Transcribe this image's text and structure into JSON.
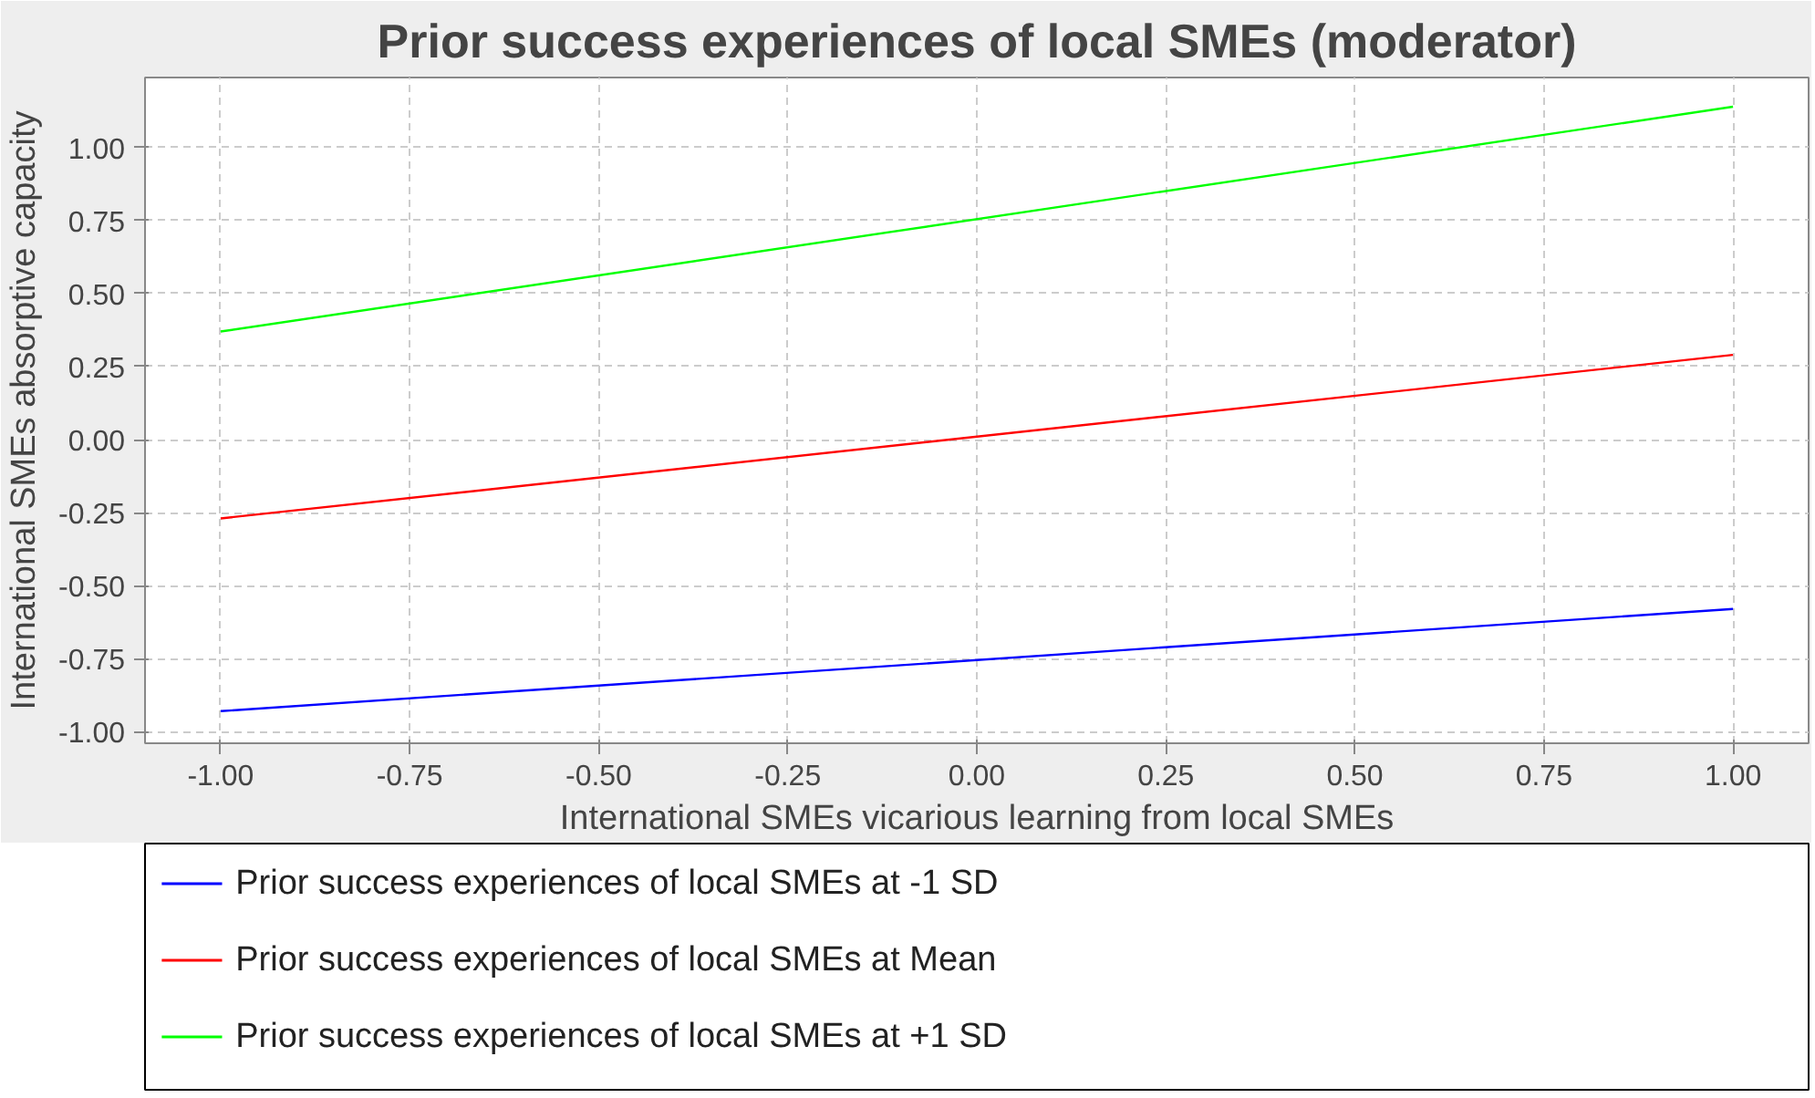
{
  "chart_data": {
    "type": "line",
    "title": "Prior success experiences of local SMEs (moderator)",
    "xlabel": "International SMEs vicarious learning from local SMEs",
    "ylabel": "International SMEs absorptive capacity",
    "x": [
      -1,
      1
    ],
    "series": [
      {
        "name": "Prior success experiences of local SMEs at -1 SD",
        "color": "#0000ff",
        "values": [
          -0.93,
          -0.58
        ]
      },
      {
        "name": "Prior success experiences of local SMEs at Mean",
        "color": "#ff0000",
        "values": [
          -0.27,
          0.29
        ]
      },
      {
        "name": "Prior success experiences of local SMEs at +1 SD",
        "color": "#00ff00",
        "values": [
          0.37,
          1.14
        ]
      }
    ],
    "xlim": [
      -1.1,
      1.1
    ],
    "ylim": [
      -1.04,
      1.24
    ],
    "xticks": [
      {
        "value": -1,
        "label": "-1.00"
      },
      {
        "value": -0.75,
        "label": "-0.75"
      },
      {
        "value": -0.5,
        "label": "-0.50"
      },
      {
        "value": -0.25,
        "label": "-0.25"
      },
      {
        "value": 0,
        "label": "0.00"
      },
      {
        "value": 0.25,
        "label": "0.25"
      },
      {
        "value": 0.5,
        "label": "0.50"
      },
      {
        "value": 0.75,
        "label": "0.75"
      },
      {
        "value": 1,
        "label": "1.00"
      }
    ],
    "yticks": [
      {
        "value": -1,
        "label": "-1.00"
      },
      {
        "value": -0.75,
        "label": "-0.75"
      },
      {
        "value": -0.5,
        "label": "-0.50"
      },
      {
        "value": -0.25,
        "label": "-0.25"
      },
      {
        "value": 0,
        "label": "0.00"
      },
      {
        "value": 0.25,
        "label": "0.25"
      },
      {
        "value": 0.5,
        "label": "0.50"
      },
      {
        "value": 0.75,
        "label": "0.75"
      },
      {
        "value": 1,
        "label": "1.00"
      }
    ],
    "grid": true,
    "legend": "bottom",
    "marker": "none",
    "line_style": "solid"
  }
}
